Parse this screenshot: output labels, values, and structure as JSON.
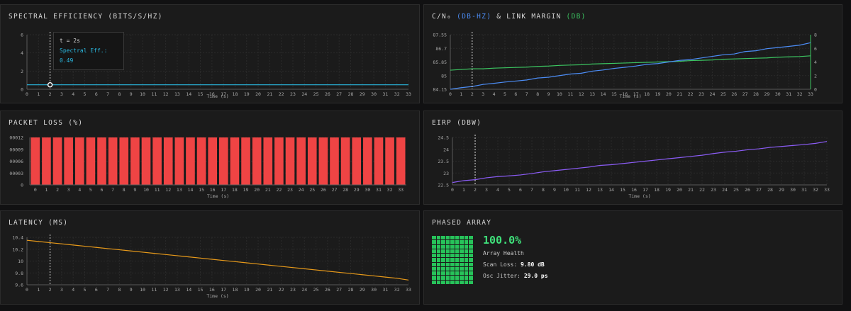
{
  "panels": {
    "spectral": {
      "title": "SPECTRAL EFFICIENCY (BITS/S/HZ)"
    },
    "cn": {
      "title_prefix": "C/N₀ ",
      "title_blue": "(DB-HZ)",
      "title_mid": " & LINK MARGIN ",
      "title_green": "(DB)"
    },
    "packet": {
      "title": "PACKET LOSS (%)"
    },
    "eirp": {
      "title": "EIRP (DBW)"
    },
    "latency": {
      "title": "LATENCY (MS)"
    },
    "phased": {
      "title": "PHASED ARRAY",
      "health_value": "100.0%",
      "health_label": "Array Health",
      "scan_loss_label": "Scan Loss:",
      "scan_loss_value": "9.80 dB",
      "jitter_label": "Osc Jitter:",
      "jitter_value": "29.0 ps",
      "health_fraction": 1.0
    }
  },
  "tooltip": {
    "line1": "t = 2s",
    "line2": "Spectral Eff.: 0.49"
  },
  "colors": {
    "spectral": "#2bb8e0",
    "cn": "#4c8df6",
    "margin": "#3cc561",
    "packet": "#ef4444",
    "eirp": "#8b5cf6",
    "latency": "#e89a1a"
  },
  "chart_data": [
    {
      "id": "spectral",
      "type": "line",
      "xlabel": "Time (s)",
      "ylabel": "",
      "x": [
        0,
        1,
        2,
        3,
        4,
        5,
        6,
        7,
        8,
        9,
        10,
        11,
        12,
        13,
        14,
        15,
        16,
        17,
        18,
        19,
        20,
        21,
        22,
        23,
        24,
        25,
        26,
        27,
        28,
        29,
        30,
        31,
        32,
        33
      ],
      "xlim": [
        0,
        33
      ],
      "ylim": [
        0,
        6
      ],
      "yticks": [
        "0",
        "2",
        "4",
        "6"
      ],
      "series": [
        {
          "values": [
            0.49,
            0.49,
            0.49,
            0.49,
            0.49,
            0.49,
            0.49,
            0.49,
            0.49,
            0.49,
            0.49,
            0.49,
            0.49,
            0.49,
            0.49,
            0.49,
            0.49,
            0.49,
            0.49,
            0.49,
            0.49,
            0.49,
            0.49,
            0.49,
            0.49,
            0.49,
            0.49,
            0.49,
            0.49,
            0.49,
            0.49,
            0.49,
            0.49,
            0.49
          ]
        }
      ],
      "cursor_x": 2,
      "grid": true
    },
    {
      "id": "cn",
      "type": "line",
      "xlabel": "Time (s)",
      "x": [
        0,
        1,
        2,
        3,
        4,
        5,
        6,
        7,
        8,
        9,
        10,
        11,
        12,
        13,
        14,
        15,
        16,
        17,
        18,
        19,
        20,
        21,
        22,
        23,
        24,
        25,
        26,
        27,
        28,
        29,
        30,
        31,
        32,
        33
      ],
      "xlim": [
        0,
        33
      ],
      "ylim": [
        84.15,
        87.55
      ],
      "yticks": [
        "84.15",
        "85",
        "85.85",
        "86.7",
        "87.55"
      ],
      "y2lim": [
        0,
        8
      ],
      "y2ticks": [
        "0",
        "2",
        "4",
        "6",
        "8"
      ],
      "series": [
        {
          "axis": "left",
          "values": [
            84.15,
            84.25,
            84.32,
            84.45,
            84.52,
            84.6,
            84.66,
            84.73,
            84.85,
            84.9,
            85.0,
            85.1,
            85.15,
            85.28,
            85.35,
            85.45,
            85.52,
            85.6,
            85.7,
            85.75,
            85.85,
            85.95,
            86.0,
            86.1,
            86.2,
            86.3,
            86.35,
            86.5,
            86.55,
            86.68,
            86.75,
            86.82,
            86.9,
            87.05
          ]
        },
        {
          "axis": "right",
          "values": [
            2.8,
            2.9,
            3.0,
            3.0,
            3.1,
            3.15,
            3.2,
            3.25,
            3.35,
            3.4,
            3.5,
            3.55,
            3.6,
            3.7,
            3.75,
            3.8,
            3.85,
            3.9,
            3.95,
            4.0,
            4.05,
            4.1,
            4.2,
            4.25,
            4.3,
            4.4,
            4.45,
            4.5,
            4.55,
            4.6,
            4.7,
            4.75,
            4.8,
            4.9
          ]
        }
      ],
      "cursor_x": 2,
      "grid": true
    },
    {
      "id": "packet",
      "type": "bar",
      "xlabel": "Time (s)",
      "categories": [
        "0",
        "1",
        "2",
        "3",
        "4",
        "5",
        "6",
        "7",
        "8",
        "9",
        "10",
        "11",
        "12",
        "13",
        "14",
        "15",
        "16",
        "17",
        "18",
        "19",
        "20",
        "21",
        "22",
        "23",
        "24",
        "25",
        "26",
        "27",
        "28",
        "29",
        "30",
        "31",
        "32",
        "33"
      ],
      "values": [
        0.00012,
        0.00012,
        0.00012,
        0.00012,
        0.00012,
        0.00012,
        0.00012,
        0.00012,
        0.00012,
        0.00012,
        0.00012,
        0.00012,
        0.00012,
        0.00012,
        0.00012,
        0.00012,
        0.00012,
        0.00012,
        0.00012,
        0.00012,
        0.00012,
        0.00012,
        0.00012,
        0.00012,
        0.00012,
        0.00012,
        0.00012,
        0.00012,
        0.00012,
        0.00012,
        0.00012,
        0.00012,
        0.00012,
        0.00012
      ],
      "ylim": [
        0,
        0.00012
      ],
      "yticks": [
        "0",
        "00003",
        "00006",
        "00009",
        "00012"
      ],
      "grid": true
    },
    {
      "id": "eirp",
      "type": "line",
      "xlabel": "Time (s)",
      "x": [
        0,
        1,
        2,
        3,
        4,
        5,
        6,
        7,
        8,
        9,
        10,
        11,
        12,
        13,
        14,
        15,
        16,
        17,
        18,
        19,
        20,
        21,
        22,
        23,
        24,
        25,
        26,
        27,
        28,
        29,
        30,
        31,
        32,
        33
      ],
      "xlim": [
        0,
        33
      ],
      "ylim": [
        22.5,
        24.5
      ],
      "yticks": [
        "22.5",
        "23",
        "23.5",
        "24",
        "24.5"
      ],
      "series": [
        {
          "values": [
            22.6,
            22.68,
            22.72,
            22.8,
            22.85,
            22.88,
            22.92,
            22.98,
            23.05,
            23.1,
            23.15,
            23.2,
            23.25,
            23.32,
            23.35,
            23.4,
            23.45,
            23.5,
            23.55,
            23.6,
            23.65,
            23.7,
            23.75,
            23.82,
            23.88,
            23.92,
            23.98,
            24.02,
            24.08,
            24.12,
            24.16,
            24.2,
            24.25,
            24.33
          ]
        }
      ],
      "cursor_x": 2,
      "grid": true
    },
    {
      "id": "latency",
      "type": "line",
      "xlabel": "Time (s)",
      "x": [
        0,
        1,
        2,
        3,
        4,
        5,
        6,
        7,
        8,
        9,
        10,
        11,
        12,
        13,
        14,
        15,
        16,
        17,
        18,
        19,
        20,
        21,
        22,
        23,
        24,
        25,
        26,
        27,
        28,
        29,
        30,
        31,
        32,
        33
      ],
      "xlim": [
        0,
        33
      ],
      "ylim": [
        9.6,
        10.4
      ],
      "yticks": [
        "9.6",
        "9.8",
        "10",
        "10.2",
        "10.4"
      ],
      "series": [
        {
          "values": [
            10.35,
            10.33,
            10.31,
            10.29,
            10.27,
            10.25,
            10.23,
            10.21,
            10.19,
            10.17,
            10.15,
            10.13,
            10.11,
            10.09,
            10.07,
            10.05,
            10.03,
            10.01,
            9.99,
            9.97,
            9.95,
            9.93,
            9.91,
            9.89,
            9.87,
            9.85,
            9.83,
            9.81,
            9.79,
            9.77,
            9.75,
            9.73,
            9.71,
            9.68
          ]
        }
      ],
      "cursor_x": 2,
      "grid": true
    }
  ]
}
